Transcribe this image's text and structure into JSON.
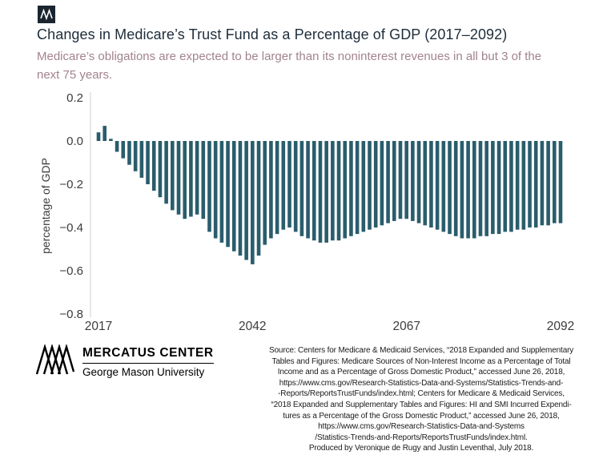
{
  "header": {
    "title": "Changes in Medicare’s Trust Fund as a Percentage of GDP (2017–2092)",
    "subtitle": "Medicare’s obligations are expected to be larger than its noninterest revenues in all but 3 of the next 75 years."
  },
  "chart_data": {
    "type": "bar",
    "title": "Changes in Medicare’s Trust Fund as a Percentage of GDP (2017–2092)",
    "subtitle": "Medicare’s obligations are expected to be larger than its noninterest revenues in all but 3 of the next 75 years.",
    "xlabel": "",
    "ylabel": "percentage of GDP",
    "ylim": [
      -0.8,
      0.2
    ],
    "grid": false,
    "legend": "none",
    "bar_color": "#2a5d6c",
    "years": [
      2017,
      2018,
      2019,
      2020,
      2021,
      2022,
      2023,
      2024,
      2025,
      2026,
      2027,
      2028,
      2029,
      2030,
      2031,
      2032,
      2033,
      2034,
      2035,
      2036,
      2037,
      2038,
      2039,
      2040,
      2041,
      2042,
      2043,
      2044,
      2045,
      2046,
      2047,
      2048,
      2049,
      2050,
      2051,
      2052,
      2053,
      2054,
      2055,
      2056,
      2057,
      2058,
      2059,
      2060,
      2061,
      2062,
      2063,
      2064,
      2065,
      2066,
      2067,
      2068,
      2069,
      2070,
      2071,
      2072,
      2073,
      2074,
      2075,
      2076,
      2077,
      2078,
      2079,
      2080,
      2081,
      2082,
      2083,
      2084,
      2085,
      2086,
      2087,
      2088,
      2089,
      2090,
      2091,
      2092
    ],
    "values": [
      0.04,
      0.07,
      0.01,
      -0.05,
      -0.08,
      -0.11,
      -0.14,
      -0.17,
      -0.2,
      -0.23,
      -0.26,
      -0.29,
      -0.32,
      -0.34,
      -0.36,
      -0.35,
      -0.34,
      -0.36,
      -0.42,
      -0.45,
      -0.47,
      -0.49,
      -0.51,
      -0.53,
      -0.55,
      -0.57,
      -0.53,
      -0.48,
      -0.45,
      -0.43,
      -0.41,
      -0.4,
      -0.42,
      -0.44,
      -0.45,
      -0.46,
      -0.47,
      -0.47,
      -0.46,
      -0.46,
      -0.45,
      -0.44,
      -0.43,
      -0.42,
      -0.41,
      -0.4,
      -0.39,
      -0.38,
      -0.37,
      -0.36,
      -0.36,
      -0.37,
      -0.38,
      -0.39,
      -0.4,
      -0.41,
      -0.42,
      -0.43,
      -0.44,
      -0.45,
      -0.45,
      -0.45,
      -0.44,
      -0.44,
      -0.43,
      -0.43,
      -0.42,
      -0.42,
      -0.41,
      -0.41,
      -0.4,
      -0.4,
      -0.39,
      -0.39,
      -0.38,
      -0.38
    ],
    "y_ticks": [
      {
        "v": 0.2,
        "label": "0.2"
      },
      {
        "v": 0.0,
        "label": "0.0"
      },
      {
        "v": -0.2,
        "label": "−0.2"
      },
      {
        "v": -0.4,
        "label": "−0.4"
      },
      {
        "v": -0.6,
        "label": "−0.6"
      },
      {
        "v": -0.8,
        "label": "−0.8"
      }
    ],
    "x_ticks": [
      {
        "year": 2017,
        "label": "2017"
      },
      {
        "year": 2042,
        "label": "2042"
      },
      {
        "year": 2067,
        "label": "2067"
      },
      {
        "year": 2092,
        "label": "2092"
      }
    ]
  },
  "footer": {
    "logo_title": "MERCATUS CENTER",
    "logo_subtitle": "George Mason University",
    "source_lines": [
      "Source: Centers for Medicare & Medicaid Services, “2018 Expanded and Supplementary",
      "Tables and Figures: Medicare Sources of Non-Interest Income as a Percentage of Total",
      "Income and as a Percentage of Gross Domestic Product,” accessed June 26, 2018,",
      "https://www.cms.gov/Research-Statistics-Data-and-Systems/Statistics-Trends-and-",
      "-Reports/ReportsTrustFunds/index.html; Centers for Medicare & Medicaid Services,",
      "“2018 Expanded and Supplementary Tables and Figures: HI and SMI Incurred Expendi-",
      "tures as a Percentage of the Gross Domestic Product,” accessed June 26, 2018,",
      "https://www.cms.gov/Research-Statistics-Data-and-Systems",
      "/Statistics-Trends-and-Reports/ReportsTrustFunds/index.html.",
      "Produced by Veronique de Rugy and Justin Leventhal, July 2018."
    ]
  },
  "colors": {
    "bar": "#2a5d6c",
    "title_text": "#1e2d3a",
    "subtitle_text": "#a2838e",
    "axis_text": "#3c3c3c"
  }
}
